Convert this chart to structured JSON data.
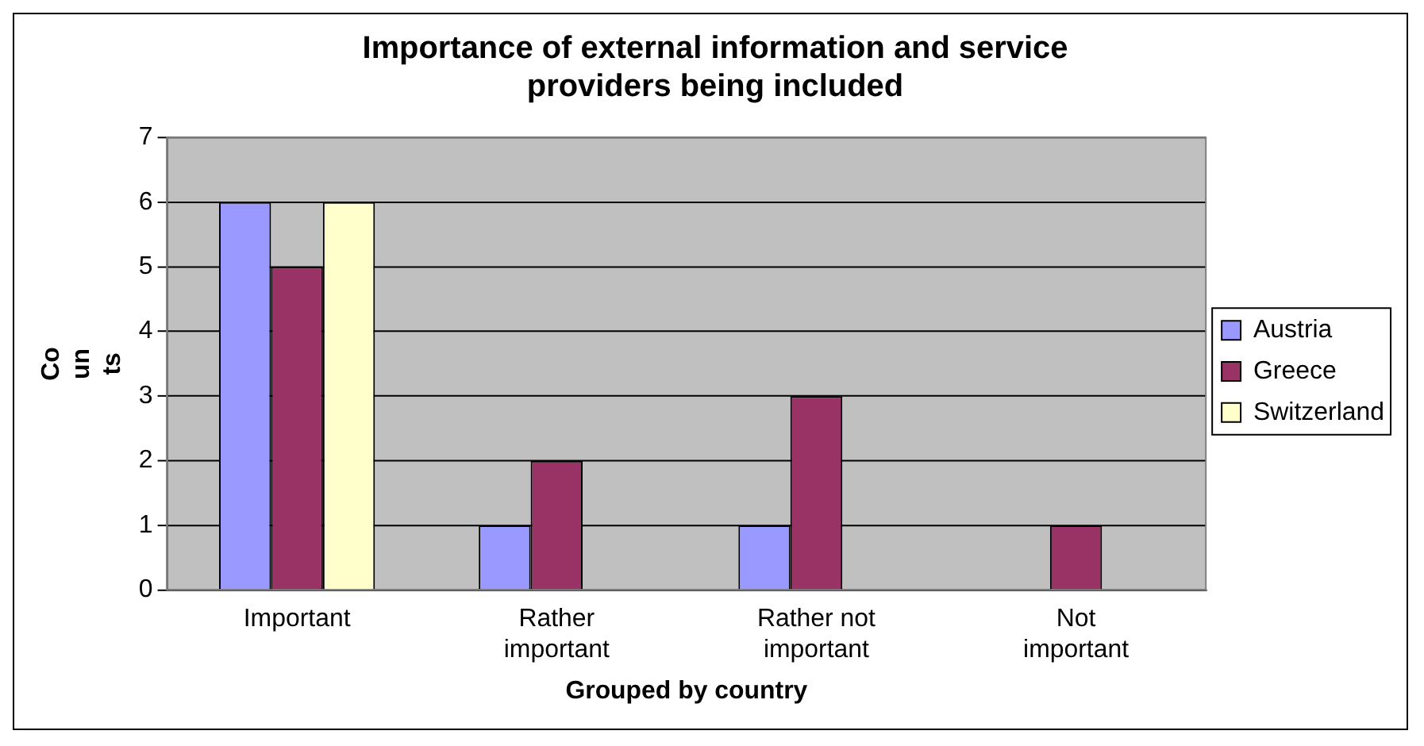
{
  "chart_data": {
    "type": "bar",
    "title": "Importance of external information and service providers being included",
    "xlabel": "Grouped by country",
    "ylabel": "Counts",
    "categories": [
      "Important",
      "Rather important",
      "Rather not important",
      "Not important"
    ],
    "series": [
      {
        "name": "Austria",
        "color": "#9999ff",
        "values": [
          6,
          1,
          1,
          0
        ]
      },
      {
        "name": "Greece",
        "color": "#993366",
        "values": [
          5,
          2,
          3,
          1
        ]
      },
      {
        "name": "Switzerland",
        "color": "#ffffcc",
        "values": [
          6,
          0,
          0,
          0
        ]
      }
    ],
    "ylim": [
      0,
      7
    ],
    "yticks": [
      0,
      1,
      2,
      3,
      4,
      5,
      6,
      7
    ],
    "grid": "y",
    "legend": "right"
  }
}
